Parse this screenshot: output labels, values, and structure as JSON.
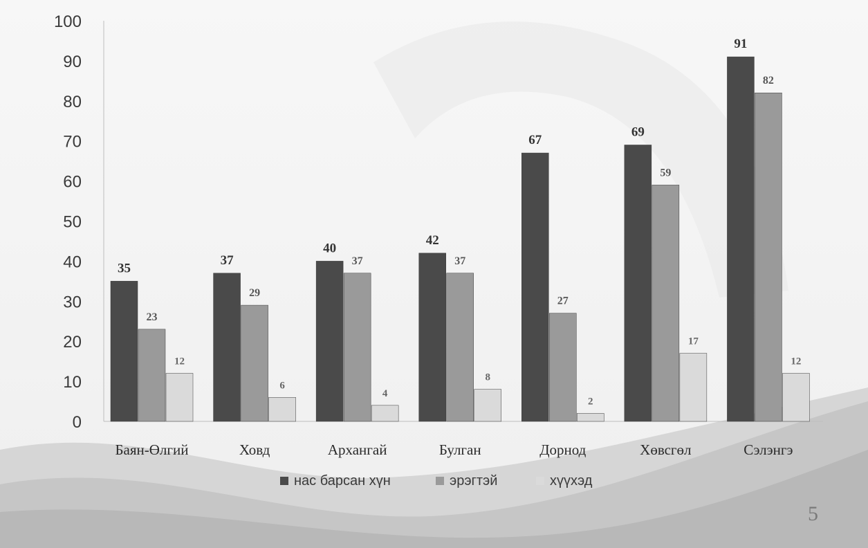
{
  "chart_data": {
    "type": "bar",
    "categories": [
      "Баян-Өлгий",
      "Ховд",
      "Архангай",
      "Булган",
      "Дорнод",
      "Хөвсгөл",
      "Сэлэнгэ"
    ],
    "series": [
      {
        "name": "нас барсан хүн",
        "values": [
          35,
          37,
          40,
          42,
          67,
          69,
          91
        ],
        "color": "#4a4a4a"
      },
      {
        "name": "эрэгтэй",
        "values": [
          23,
          29,
          37,
          37,
          27,
          59,
          82
        ],
        "color": "#9a9a9a"
      },
      {
        "name": "хүүхэд",
        "values": [
          12,
          6,
          4,
          8,
          2,
          17,
          12
        ],
        "color": "#dadada"
      }
    ],
    "ylim": [
      0,
      100
    ],
    "yticks": [
      0,
      10,
      20,
      30,
      40,
      50,
      60,
      70,
      80,
      90,
      100
    ],
    "legend_position": "bottom",
    "grid": false,
    "xlabel": "",
    "ylabel": ""
  },
  "slide": {
    "page_number": "5"
  }
}
